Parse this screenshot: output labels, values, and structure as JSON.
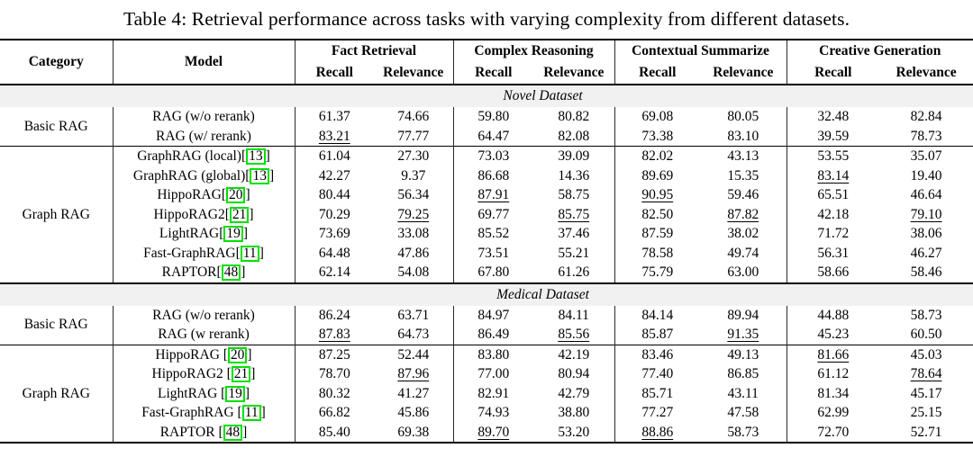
{
  "caption": "Table 4: Retrieval performance across tasks with varying complexity from different datasets.",
  "colors": {
    "cite_border": "#00e000",
    "band_bg": "#f1f1f1"
  },
  "columns": {
    "category": "Category",
    "model": "Model",
    "groups": [
      {
        "label": "Fact Retrieval",
        "sub": [
          "Recall",
          "Relevance"
        ]
      },
      {
        "label": "Complex Reasoning",
        "sub": [
          "Recall",
          "Relevance"
        ]
      },
      {
        "label": "Contextual Summarize",
        "sub": [
          "Recall",
          "Relevance"
        ]
      },
      {
        "label": "Creative Generation",
        "sub": [
          "Recall",
          "Relevance"
        ]
      }
    ]
  },
  "chart_data": {
    "type": "table",
    "title": "Table 4: Retrieval performance across tasks with varying complexity from different datasets.",
    "value_columns": [
      "Fact Retrieval Recall",
      "Fact Retrieval Relevance",
      "Complex Reasoning Recall",
      "Complex Reasoning Relevance",
      "Contextual Summarize Recall",
      "Contextual Summarize Relevance",
      "Creative Generation Recall",
      "Creative Generation Relevance"
    ]
  },
  "sections": [
    {
      "title": "Novel Dataset",
      "blocks": [
        {
          "category": "Basic RAG",
          "rows": [
            {
              "model": "RAG (w/o rerank)",
              "cite": null,
              "values": [
                "61.37",
                "74.66",
                "59.80",
                "80.82",
                "69.08",
                "80.05",
                "32.48",
                "82.84"
              ],
              "underline": []
            },
            {
              "model": "RAG (w/ rerank)",
              "cite": null,
              "values": [
                "83.21",
                "77.77",
                "64.47",
                "82.08",
                "73.38",
                "83.10",
                "39.59",
                "78.73"
              ],
              "underline": [
                0
              ]
            }
          ]
        },
        {
          "category": "Graph RAG",
          "rows": [
            {
              "model": "GraphRAG (local)",
              "cite": "13",
              "values": [
                "61.04",
                "27.30",
                "73.03",
                "39.09",
                "82.02",
                "43.13",
                "53.55",
                "35.07"
              ],
              "underline": []
            },
            {
              "model": "GraphRAG (global)",
              "cite": "13",
              "values": [
                "42.27",
                "9.37",
                "86.68",
                "14.36",
                "89.69",
                "15.35",
                "83.14",
                "19.40"
              ],
              "underline": [
                6
              ]
            },
            {
              "model": "HippoRAG",
              "cite": "20",
              "values": [
                "80.44",
                "56.34",
                "87.91",
                "58.75",
                "90.95",
                "59.46",
                "65.51",
                "46.64"
              ],
              "underline": [
                2,
                4
              ]
            },
            {
              "model": "HippoRAG2",
              "cite": "21",
              "values": [
                "70.29",
                "79.25",
                "69.77",
                "85.75",
                "82.50",
                "87.82",
                "42.18",
                "79.10"
              ],
              "underline": [
                1,
                3,
                5,
                7
              ]
            },
            {
              "model": "LightRAG",
              "cite": "19",
              "values": [
                "73.69",
                "33.08",
                "85.52",
                "37.46",
                "87.59",
                "38.02",
                "71.72",
                "38.06"
              ],
              "underline": []
            },
            {
              "model": "Fast-GraphRAG",
              "cite": "11",
              "values": [
                "64.48",
                "47.86",
                "73.51",
                "55.21",
                "78.58",
                "49.74",
                "56.31",
                "46.27"
              ],
              "underline": []
            },
            {
              "model": "RAPTOR",
              "cite": "48",
              "values": [
                "62.14",
                "54.08",
                "67.80",
                "61.26",
                "75.79",
                "63.00",
                "58.66",
                "58.46"
              ],
              "underline": []
            }
          ]
        }
      ]
    },
    {
      "title": "Medical Dataset",
      "blocks": [
        {
          "category": "Basic RAG",
          "rows": [
            {
              "model": "RAG (w/o rerank)",
              "cite": null,
              "values": [
                "86.24",
                "63.71",
                "84.97",
                "84.11",
                "84.14",
                "89.94",
                "44.88",
                "58.73"
              ],
              "underline": []
            },
            {
              "model": "RAG (w rerank)",
              "cite": null,
              "values": [
                "87.83",
                "64.73",
                "86.49",
                "85.56",
                "85.87",
                "91.35",
                "45.23",
                "60.50"
              ],
              "underline": [
                0,
                3,
                5
              ]
            }
          ]
        },
        {
          "category": "Graph RAG",
          "rows": [
            {
              "model": "HippoRAG ",
              "cite": "20",
              "values": [
                "87.25",
                "52.44",
                "83.80",
                "42.19",
                "83.46",
                "49.13",
                "81.66",
                "45.03"
              ],
              "underline": [
                6
              ]
            },
            {
              "model": "HippoRAG2 ",
              "cite": "21",
              "values": [
                "78.70",
                "87.96",
                "77.00",
                "80.94",
                "77.40",
                "86.85",
                "61.12",
                "78.64"
              ],
              "underline": [
                1,
                7
              ]
            },
            {
              "model": "LightRAG ",
              "cite": "19",
              "values": [
                "80.32",
                "41.27",
                "82.91",
                "42.79",
                "85.71",
                "43.11",
                "81.34",
                "45.17"
              ],
              "underline": []
            },
            {
              "model": "Fast-GraphRAG ",
              "cite": "11",
              "values": [
                "66.82",
                "45.86",
                "74.93",
                "38.80",
                "77.27",
                "47.58",
                "62.99",
                "25.15"
              ],
              "underline": []
            },
            {
              "model": "RAPTOR ",
              "cite": "48",
              "values": [
                "85.40",
                "69.38",
                "89.70",
                "53.20",
                "88.86",
                "58.73",
                "72.70",
                "52.71"
              ],
              "underline": [
                2,
                4
              ]
            }
          ]
        }
      ]
    }
  ]
}
